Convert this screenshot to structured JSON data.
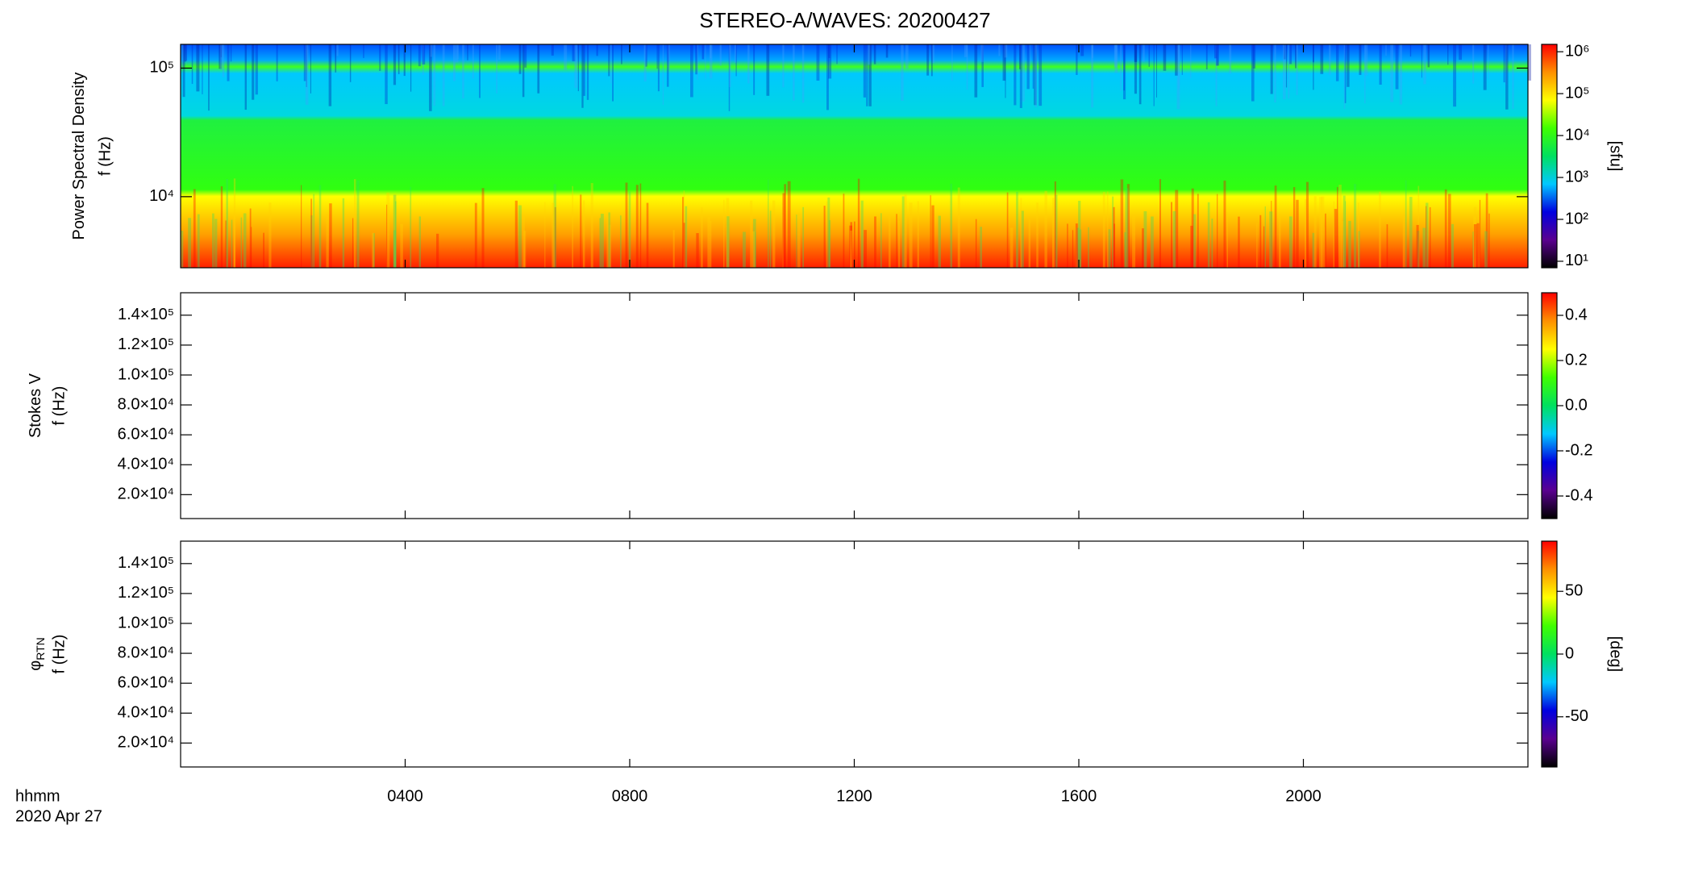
{
  "chart_data": {
    "type": "spectrogram",
    "title": "STEREO-A/WAVES: 20200427",
    "xlabel": "hhmm",
    "date": "2020 Apr 27",
    "xlim": [
      0,
      24
    ],
    "xticks": [
      {
        "value": 4,
        "label": "0400"
      },
      {
        "value": 8,
        "label": "0800"
      },
      {
        "value": 12,
        "label": "1200"
      },
      {
        "value": 16,
        "label": "1600"
      },
      {
        "value": 20,
        "label": "2000"
      }
    ],
    "colormap": [
      "#000000",
      "#5a0090",
      "#0000e0",
      "#00c8ff",
      "#00e060",
      "#40ff00",
      "#ffff00",
      "#ff9000",
      "#ff0000"
    ],
    "panels": [
      {
        "ylabel": "Power Spectral Density",
        "ylabel2": "f (Hz)",
        "ylog": true,
        "ylim": [
          2800,
          153000
        ],
        "yticks": [
          {
            "value": 10000,
            "label": "10⁴"
          },
          {
            "value": 100000,
            "label": "10⁵"
          }
        ],
        "clog": true,
        "clim": [
          7,
          1500000
        ],
        "cticks": [
          {
            "value": 10,
            "label": "10¹"
          },
          {
            "value": 100,
            "label": "10²"
          },
          {
            "value": 1000,
            "label": "10³"
          },
          {
            "value": 10000,
            "label": "10⁴"
          },
          {
            "value": 100000,
            "label": "10⁵"
          },
          {
            "value": 1000000,
            "label": "10⁶"
          }
        ],
        "clabel": "[sfu]"
      },
      {
        "ylabel": "Stokes V",
        "ylabel2": "f (Hz)",
        "ylog": false,
        "ylim": [
          4000,
          155000
        ],
        "yticks": [
          {
            "value": 20000,
            "label": "2.0×10⁴"
          },
          {
            "value": 40000,
            "label": "4.0×10⁴"
          },
          {
            "value": 60000,
            "label": "6.0×10⁴"
          },
          {
            "value": 80000,
            "label": "8.0×10⁴"
          },
          {
            "value": 100000,
            "label": "1.0×10⁵"
          },
          {
            "value": 120000,
            "label": "1.2×10⁵"
          },
          {
            "value": 140000,
            "label": "1.4×10⁵"
          }
        ],
        "clog": false,
        "clim": [
          -0.5,
          0.5
        ],
        "cticks": [
          {
            "value": -0.4,
            "label": "-0.4"
          },
          {
            "value": -0.2,
            "label": "-0.2"
          },
          {
            "value": 0,
            "label": "0.0"
          },
          {
            "value": 0.2,
            "label": "0.2"
          },
          {
            "value": 0.4,
            "label": "0.4"
          }
        ]
      },
      {
        "ylabel": "φ",
        "ylabel_sub": "RTN",
        "ylabel2": "f (Hz)",
        "ylog": false,
        "ylim": [
          4000,
          155000
        ],
        "yticks": [
          {
            "value": 20000,
            "label": "2.0×10⁴"
          },
          {
            "value": 40000,
            "label": "4.0×10⁴"
          },
          {
            "value": 60000,
            "label": "6.0×10⁴"
          },
          {
            "value": 80000,
            "label": "8.0×10⁴"
          },
          {
            "value": 100000,
            "label": "1.0×10⁵"
          },
          {
            "value": 120000,
            "label": "1.2×10⁵"
          },
          {
            "value": 140000,
            "label": "1.4×10⁵"
          }
        ],
        "clog": false,
        "clim": [
          -90,
          90
        ],
        "cticks": [
          -50,
          0,
          50
        ],
        "clabel": "[deg]"
      }
    ]
  }
}
